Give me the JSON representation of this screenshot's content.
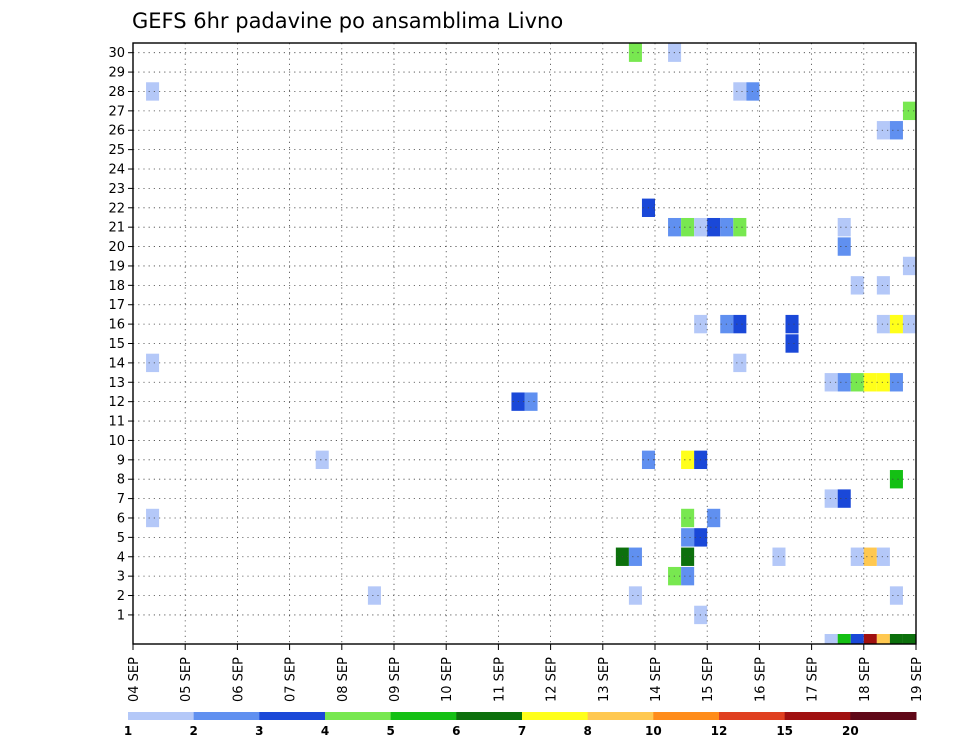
{
  "chart_data": {
    "type": "heatmap",
    "title": "GEFS 6hr padavine po ansamblima Livno",
    "xlabel": "",
    "ylabel": "",
    "x_tick_labels": [
      "04 SEP",
      "05 SEP",
      "06 SEP",
      "07 SEP",
      "08 SEP",
      "09 SEP",
      "10 SEP",
      "11 SEP",
      "12 SEP",
      "13 SEP",
      "14 SEP",
      "15 SEP",
      "16 SEP",
      "17 SEP",
      "18 SEP",
      "19 SEP"
    ],
    "y_tick_labels": [
      "1",
      "2",
      "3",
      "4",
      "5",
      "6",
      "7",
      "8",
      "9",
      "10",
      "11",
      "12",
      "13",
      "14",
      "15",
      "16",
      "17",
      "18",
      "19",
      "20",
      "21",
      "22",
      "23",
      "24",
      "25",
      "26",
      "27",
      "28",
      "29",
      "30"
    ],
    "xlim": [
      0,
      60
    ],
    "ylim": [
      0,
      30
    ],
    "grid": true,
    "legend": {
      "placement": "bottom",
      "tick_labels": [
        "1",
        "2",
        "3",
        "4",
        "5",
        "6",
        "7",
        "8",
        "10",
        "12",
        "15",
        "20"
      ],
      "colors": [
        "#b4c8f8",
        "#6090f0",
        "#1a48d8",
        "#78e850",
        "#14c014",
        "#0c700c",
        "#ffff1a",
        "#ffc850",
        "#ff8c1a",
        "#e04020",
        "#a01010",
        "#600818"
      ]
    },
    "cells": [
      {
        "t": 38,
        "m": 30,
        "c": 4
      },
      {
        "t": 41,
        "m": 30,
        "c": 1
      },
      {
        "t": 1,
        "m": 28,
        "c": 1
      },
      {
        "t": 46,
        "m": 28,
        "c": 1
      },
      {
        "t": 47,
        "m": 28,
        "c": 2
      },
      {
        "t": 59,
        "m": 27,
        "c": 4
      },
      {
        "t": 57,
        "m": 26,
        "c": 1
      },
      {
        "t": 58,
        "m": 26,
        "c": 2
      },
      {
        "t": 39,
        "m": 22,
        "c": 3
      },
      {
        "t": 41,
        "m": 21,
        "c": 2
      },
      {
        "t": 42,
        "m": 21,
        "c": 4
      },
      {
        "t": 43,
        "m": 21,
        "c": 1
      },
      {
        "t": 44,
        "m": 21,
        "c": 3
      },
      {
        "t": 45,
        "m": 21,
        "c": 2
      },
      {
        "t": 46,
        "m": 21,
        "c": 4
      },
      {
        "t": 54,
        "m": 21,
        "c": 1
      },
      {
        "t": 54,
        "m": 20,
        "c": 2
      },
      {
        "t": 59,
        "m": 19,
        "c": 1
      },
      {
        "t": 55,
        "m": 18,
        "c": 1
      },
      {
        "t": 57,
        "m": 18,
        "c": 1
      },
      {
        "t": 43,
        "m": 16,
        "c": 1
      },
      {
        "t": 45,
        "m": 16,
        "c": 2
      },
      {
        "t": 46,
        "m": 16,
        "c": 3
      },
      {
        "t": 50,
        "m": 16,
        "c": 3
      },
      {
        "t": 50,
        "m": 15,
        "c": 3
      },
      {
        "t": 57,
        "m": 16,
        "c": 1
      },
      {
        "t": 58,
        "m": 16,
        "c": 7
      },
      {
        "t": 59,
        "m": 16,
        "c": 1
      },
      {
        "t": 1,
        "m": 14,
        "c": 1
      },
      {
        "t": 46,
        "m": 14,
        "c": 1
      },
      {
        "t": 53,
        "m": 13,
        "c": 1
      },
      {
        "t": 54,
        "m": 13,
        "c": 2
      },
      {
        "t": 55,
        "m": 13,
        "c": 4
      },
      {
        "t": 56,
        "m": 13,
        "c": 7
      },
      {
        "t": 57,
        "m": 13,
        "c": 7
      },
      {
        "t": 58,
        "m": 13,
        "c": 2
      },
      {
        "t": 29,
        "m": 12,
        "c": 3
      },
      {
        "t": 30,
        "m": 12,
        "c": 2
      },
      {
        "t": 14,
        "m": 9,
        "c": 1
      },
      {
        "t": 39,
        "m": 9,
        "c": 2
      },
      {
        "t": 42,
        "m": 9,
        "c": 7
      },
      {
        "t": 43,
        "m": 9,
        "c": 3
      },
      {
        "t": 58,
        "m": 8,
        "c": 5
      },
      {
        "t": 53,
        "m": 7,
        "c": 1
      },
      {
        "t": 54,
        "m": 7,
        "c": 3
      },
      {
        "t": 1,
        "m": 6,
        "c": 1
      },
      {
        "t": 42,
        "m": 6,
        "c": 4
      },
      {
        "t": 44,
        "m": 6,
        "c": 2
      },
      {
        "t": 42,
        "m": 5,
        "c": 2
      },
      {
        "t": 43,
        "m": 5,
        "c": 3
      },
      {
        "t": 37,
        "m": 4,
        "c": 6
      },
      {
        "t": 38,
        "m": 4,
        "c": 2
      },
      {
        "t": 42,
        "m": 4,
        "c": 6
      },
      {
        "t": 49,
        "m": 4,
        "c": 1
      },
      {
        "t": 55,
        "m": 4,
        "c": 1
      },
      {
        "t": 56,
        "m": 4,
        "c": 8
      },
      {
        "t": 57,
        "m": 4,
        "c": 1
      },
      {
        "t": 41,
        "m": 3,
        "c": 4
      },
      {
        "t": 42,
        "m": 3,
        "c": 2
      },
      {
        "t": 18,
        "m": 2,
        "c": 1
      },
      {
        "t": 38,
        "m": 2,
        "c": 1
      },
      {
        "t": 58,
        "m": 2,
        "c": 1
      },
      {
        "t": 43,
        "m": 1,
        "c": 1
      }
    ],
    "summary_strip": [
      {
        "t": 53,
        "c": 1
      },
      {
        "t": 54,
        "c": 5
      },
      {
        "t": 55,
        "c": 3
      },
      {
        "t": 56,
        "c": 11
      },
      {
        "t": 57,
        "c": 8
      },
      {
        "t": 58,
        "c": 6
      },
      {
        "t": 59,
        "c": 6
      }
    ]
  }
}
